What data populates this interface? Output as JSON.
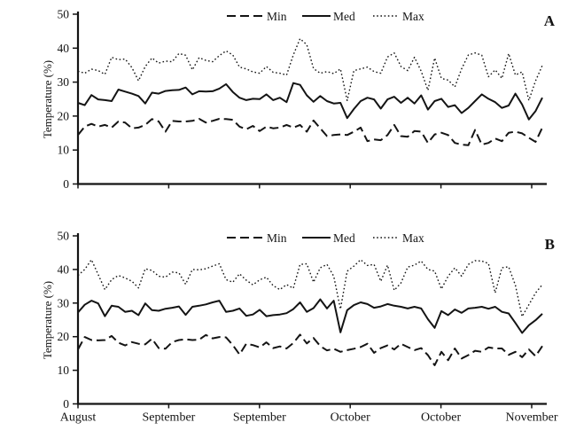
{
  "colors": {
    "line": "#141414",
    "background": "#ffffff"
  },
  "chart_data": [
    {
      "type": "line",
      "panel_label": "A",
      "ylabel": "Temperature (%)",
      "ylim": [
        0,
        50
      ],
      "yticks": [
        0,
        10,
        20,
        30,
        40,
        50
      ],
      "categories": [
        "August",
        "September",
        "September",
        "October",
        "October",
        "November"
      ],
      "legend_position": "top",
      "grid": false,
      "series": [
        {
          "name": "Min",
          "style": "dashed",
          "values": [
            14.4,
            16.9,
            17.7,
            16.9,
            17.4,
            16.6,
            18.4,
            18.1,
            16.4,
            16.6,
            17.4,
            19.1,
            18.4,
            15.4,
            18.6,
            18.4,
            18.4,
            18.6,
            19.2,
            18.1,
            18.6,
            19.2,
            19.1,
            18.9,
            16.9,
            16.1,
            17.1,
            15.6,
            16.9,
            16.4,
            16.6,
            17.4,
            16.6,
            17.4,
            15.4,
            18.7,
            16.4,
            14.1,
            14.4,
            14.6,
            14.4,
            15.4,
            16.6,
            12.6,
            13.1,
            12.9,
            14.4,
            17.4,
            14.1,
            13.9,
            15.6,
            15.4,
            12.1,
            14.6,
            15.1,
            14.4,
            12.1,
            11.6,
            11.4,
            15.9,
            11.6,
            12.1,
            13.4,
            12.6,
            15.1,
            15.4,
            14.9,
            13.6,
            12.4,
            16.6
          ]
        },
        {
          "name": "Med",
          "style": "solid",
          "values": [
            23.9,
            23.2,
            26.2,
            24.9,
            24.7,
            24.4,
            27.8,
            27.2,
            26.6,
            25.9,
            23.7,
            26.9,
            26.6,
            27.4,
            27.6,
            27.7,
            28.4,
            26.4,
            27.3,
            27.2,
            27.3,
            28.1,
            29.4,
            27.1,
            25.4,
            24.7,
            25.1,
            25.0,
            26.4,
            24.7,
            25.4,
            24.1,
            29.7,
            29.2,
            26.1,
            24.2,
            25.9,
            24.4,
            23.7,
            23.9,
            19.4,
            22.1,
            24.4,
            25.4,
            24.9,
            22.2,
            24.9,
            25.7,
            23.9,
            25.4,
            23.7,
            26.1,
            21.9,
            24.4,
            25.1,
            22.7,
            23.2,
            20.9,
            22.4,
            24.4,
            26.4,
            25.1,
            24.1,
            22.4,
            23.1,
            26.6,
            23.4,
            19.0,
            21.5,
            25.4
          ]
        },
        {
          "name": "Max",
          "style": "dotted",
          "values": [
            33.2,
            32.6,
            33.8,
            33.4,
            32.3,
            37.3,
            36.6,
            36.8,
            34.3,
            30.4,
            34.6,
            37.1,
            35.6,
            36.2,
            36.0,
            38.4,
            37.9,
            33.6,
            37.2,
            36.4,
            36.0,
            37.8,
            39.2,
            38.0,
            34.4,
            33.9,
            33.0,
            32.6,
            34.6,
            32.9,
            32.6,
            32.1,
            38.0,
            42.8,
            41.0,
            34.0,
            32.6,
            33.1,
            32.5,
            33.9,
            24.6,
            33.4,
            33.9,
            34.4,
            33.1,
            32.6,
            37.4,
            38.6,
            34.6,
            33.4,
            37.3,
            33.2,
            27.6,
            37.1,
            31.1,
            30.6,
            28.6,
            33.9,
            38.0,
            38.6,
            37.9,
            31.6,
            33.6,
            31.1,
            38.4,
            32.1,
            33.0,
            24.6,
            30.4,
            34.9
          ]
        }
      ]
    },
    {
      "type": "line",
      "panel_label": "B",
      "ylabel": "Temperature (%)",
      "ylim": [
        0,
        50
      ],
      "yticks": [
        0,
        10,
        20,
        30,
        40,
        50
      ],
      "categories": [
        "August",
        "September",
        "September",
        "October",
        "October",
        "November"
      ],
      "legend_position": "top",
      "grid": false,
      "series": [
        {
          "name": "Min",
          "style": "dashed",
          "values": [
            16.2,
            19.9,
            19.0,
            18.9,
            19.0,
            20.2,
            18.2,
            17.4,
            18.4,
            17.9,
            17.7,
            19.4,
            16.6,
            16.4,
            18.4,
            19.0,
            19.2,
            19.0,
            19.1,
            20.5,
            19.5,
            19.9,
            19.8,
            17.5,
            14.7,
            17.9,
            17.5,
            16.8,
            18.3,
            16.6,
            17.1,
            16.5,
            18.1,
            20.6,
            18.0,
            19.6,
            17.2,
            15.9,
            16.4,
            15.5,
            16.0,
            16.4,
            16.9,
            17.9,
            15.2,
            16.6,
            17.4,
            16.2,
            17.9,
            16.9,
            16.0,
            16.6,
            14.5,
            11.5,
            15.5,
            13.0,
            16.5,
            13.5,
            14.5,
            15.8,
            15.5,
            16.8,
            16.5,
            16.5,
            14.6,
            15.5,
            13.9,
            16.2,
            14.2,
            17.2
          ]
        },
        {
          "name": "Med",
          "style": "solid",
          "values": [
            27.2,
            29.5,
            30.7,
            29.9,
            26.1,
            29.2,
            28.9,
            27.4,
            27.7,
            26.4,
            29.9,
            27.9,
            27.7,
            28.3,
            28.6,
            29.0,
            26.5,
            28.9,
            29.2,
            29.6,
            30.2,
            30.7,
            27.4,
            27.7,
            28.4,
            26.2,
            26.6,
            28.0,
            26.1,
            26.4,
            26.6,
            27.0,
            28.2,
            30.2,
            27.4,
            28.5,
            31.1,
            28.4,
            30.7,
            21.3,
            27.9,
            29.4,
            30.2,
            29.7,
            28.6,
            29.0,
            29.7,
            29.2,
            28.9,
            28.4,
            28.9,
            28.4,
            25.2,
            22.6,
            27.6,
            26.4,
            28.1,
            27.1,
            28.4,
            28.6,
            28.9,
            28.3,
            28.9,
            27.4,
            26.9,
            24.1,
            21.1,
            23.4,
            24.9,
            26.8
          ]
        },
        {
          "name": "Max",
          "style": "dotted",
          "values": [
            38.2,
            40.0,
            42.9,
            38.5,
            34.0,
            37.0,
            38.2,
            37.5,
            36.5,
            34.5,
            40.2,
            39.7,
            38.0,
            37.7,
            39.2,
            39.0,
            35.6,
            40.0,
            39.9,
            40.2,
            41.0,
            41.7,
            37.0,
            36.2,
            38.7,
            36.8,
            35.4,
            36.9,
            37.7,
            35.2,
            34.0,
            35.5,
            34.4,
            41.5,
            41.7,
            36.2,
            40.5,
            41.5,
            38.0,
            28.2,
            39.5,
            41.0,
            42.9,
            41.2,
            41.5,
            36.5,
            41.3,
            33.8,
            36.0,
            40.7,
            41.3,
            42.5,
            40.0,
            39.5,
            34.2,
            38.0,
            40.5,
            38.0,
            41.5,
            42.6,
            42.5,
            41.8,
            33.0,
            40.5,
            40.8,
            35.3,
            26.0,
            29.5,
            33.0,
            35.5
          ]
        }
      ]
    }
  ]
}
